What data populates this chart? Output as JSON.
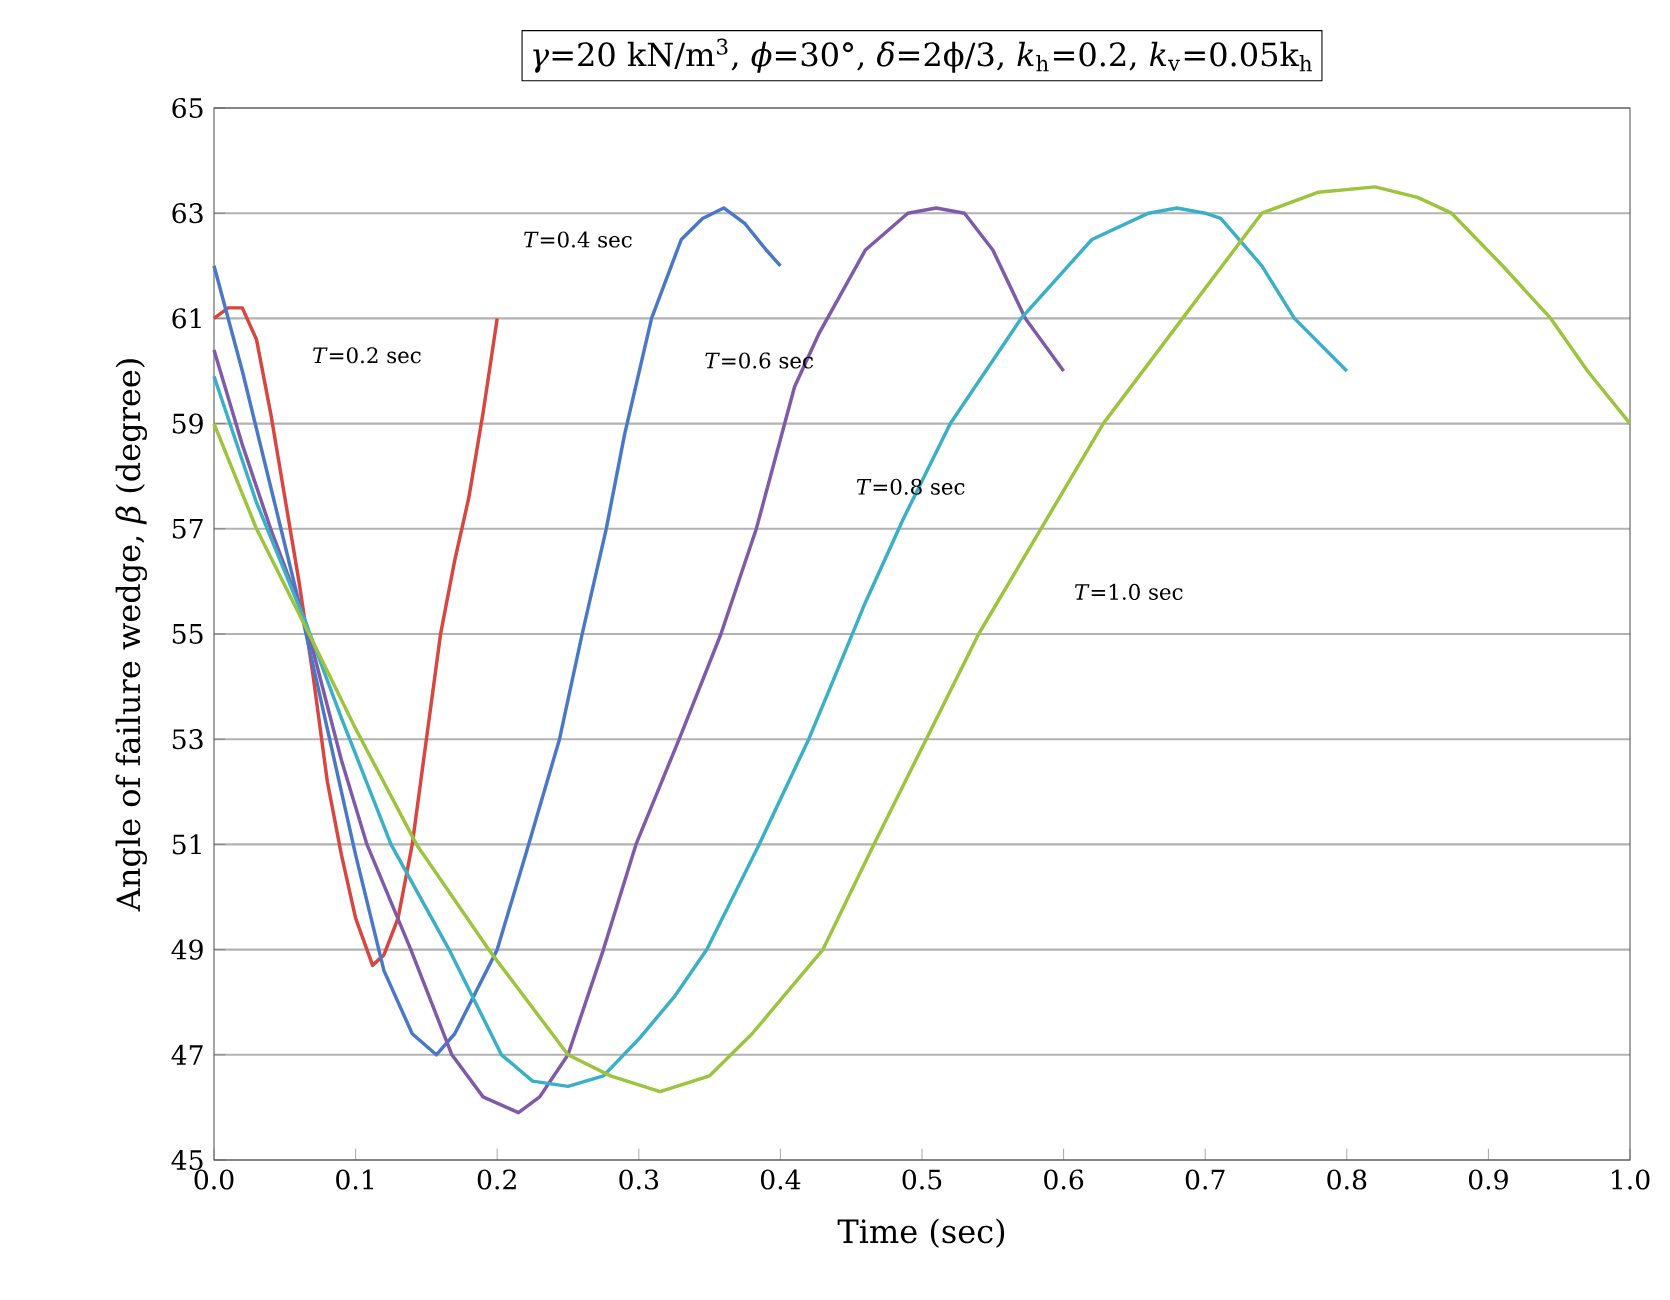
{
  "chart_data": {
    "type": "line",
    "title": "*γ*=20 kN/m$^{3}$,  *ϕ*=30°,  *δ*=2ϕ/3,  *k*$_{h}$=0.2,  *k*$_{v}$=0.05k$_{h}$",
    "xlabel": "Time (sec)",
    "ylabel": "Angle of failure wedge, *β* (degree)",
    "xlim": [
      0,
      1
    ],
    "ylim": [
      45,
      65
    ],
    "xticks": [
      {
        "value": 0,
        "label": "0.0"
      },
      {
        "value": 0.1,
        "label": "0.1"
      },
      {
        "value": 0.2,
        "label": "0.2"
      },
      {
        "value": 0.3,
        "label": "0.3"
      },
      {
        "value": 0.4,
        "label": "0.4"
      },
      {
        "value": 0.5,
        "label": "0.5"
      },
      {
        "value": 0.6,
        "label": "0.6"
      },
      {
        "value": 0.7,
        "label": "0.7"
      },
      {
        "value": 0.8,
        "label": "0.8"
      },
      {
        "value": 0.9,
        "label": "0.9"
      },
      {
        "value": 1,
        "label": "1.0"
      }
    ],
    "yticks": [
      45,
      47,
      49,
      51,
      53,
      55,
      57,
      59,
      61,
      63,
      65
    ],
    "grid": "y",
    "legend": false,
    "marker": "none",
    "line_style": "solid",
    "series": [
      {
        "name": "*T*=0.2 sec",
        "color": "#d9453f",
        "x": [
          0,
          0.01,
          0.02,
          0.03,
          0.04,
          0.05,
          0.06,
          0.07,
          0.08,
          0.09,
          0.1,
          0.112,
          0.12,
          0.13,
          0.14,
          0.15,
          0.16,
          0.17,
          0.18,
          0.19,
          0.2
        ],
        "values": [
          61.0,
          61.2,
          61.2,
          60.6,
          59.2,
          57.6,
          56.0,
          54.2,
          52.2,
          50.8,
          49.6,
          48.7,
          48.9,
          49.6,
          51.0,
          53.0,
          55.0,
          56.4,
          57.6,
          59.2,
          61.0
        ]
      },
      {
        "name": "*T*=0.4 sec",
        "color": "#4a78c8",
        "x": [
          0,
          0.02,
          0.04,
          0.06,
          0.08,
          0.1,
          0.12,
          0.14,
          0.157,
          0.17,
          0.185,
          0.2,
          0.22,
          0.244,
          0.26,
          0.277,
          0.29,
          0.309,
          0.33,
          0.345,
          0.36,
          0.375,
          0.39,
          0.4
        ],
        "values": [
          62.0,
          60.0,
          57.8,
          55.6,
          53.2,
          50.8,
          48.6,
          47.4,
          47.0,
          47.4,
          48.2,
          49.0,
          50.8,
          53.0,
          55.0,
          57.0,
          58.8,
          61.0,
          62.5,
          62.9,
          63.1,
          62.8,
          62.3,
          62.0
        ]
      },
      {
        "name": "*T*=0.6 sec",
        "color": "#7e5aa8",
        "x": [
          0,
          0.02,
          0.04,
          0.065,
          0.09,
          0.108,
          0.139,
          0.168,
          0.19,
          0.215,
          0.23,
          0.25,
          0.275,
          0.298,
          0.33,
          0.358,
          0.383,
          0.41,
          0.427,
          0.46,
          0.49,
          0.51,
          0.53,
          0.55,
          0.573,
          0.6
        ],
        "values": [
          60.4,
          58.6,
          57.0,
          55.2,
          52.6,
          51.0,
          49.0,
          47.0,
          46.2,
          45.9,
          46.2,
          47.0,
          49.0,
          51.0,
          53.1,
          55.0,
          57.0,
          59.7,
          60.7,
          62.3,
          63.0,
          63.1,
          63.0,
          62.3,
          61.0,
          60.0
        ]
      },
      {
        "name": "*T*=0.8 sec",
        "color": "#3ab0c8",
        "x": [
          0,
          0.03,
          0.065,
          0.09,
          0.125,
          0.166,
          0.203,
          0.225,
          0.25,
          0.275,
          0.3,
          0.325,
          0.348,
          0.385,
          0.42,
          0.437,
          0.46,
          0.487,
          0.52,
          0.57,
          0.62,
          0.66,
          0.68,
          0.7,
          0.711,
          0.74,
          0.763,
          0.8
        ],
        "values": [
          59.9,
          57.5,
          55.2,
          53.4,
          51.0,
          49.0,
          47.0,
          46.5,
          46.4,
          46.6,
          47.3,
          48.1,
          49.0,
          51.0,
          53.0,
          54.1,
          55.6,
          57.2,
          59.0,
          61.0,
          62.5,
          63.0,
          63.1,
          63.0,
          62.9,
          62.0,
          61.0,
          60.0
        ]
      },
      {
        "name": "*T*=1.0 sec",
        "color": "#9cc43c",
        "x": [
          0,
          0.03,
          0.069,
          0.1,
          0.143,
          0.194,
          0.25,
          0.28,
          0.315,
          0.35,
          0.38,
          0.405,
          0.43,
          0.466,
          0.503,
          0.54,
          0.584,
          0.628,
          0.684,
          0.74,
          0.78,
          0.82,
          0.85,
          0.874,
          0.91,
          0.944,
          0.97,
          1.0
        ],
        "values": [
          59.0,
          57.0,
          54.9,
          53.2,
          51.0,
          49.0,
          47.0,
          46.6,
          46.3,
          46.6,
          47.4,
          48.2,
          49.0,
          51.0,
          53.0,
          55.0,
          57.0,
          59.0,
          61.0,
          63.0,
          63.4,
          63.5,
          63.3,
          63.0,
          62.0,
          61.0,
          60.0,
          59.0
        ]
      }
    ]
  }
}
